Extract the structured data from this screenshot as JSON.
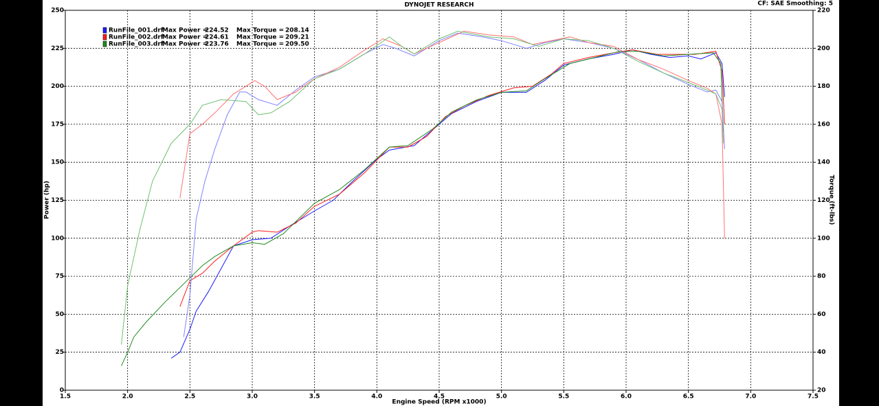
{
  "chart_data": {
    "type": "line",
    "title": "DYNOJET RESEARCH",
    "subtitle": "CF: SAE  Smoothing: 5",
    "x_label": "Engine Speed (RPM x1000)",
    "y_label": "Power (hp)",
    "y2_label": "Torque (ft-lbs)",
    "grid": true,
    "xlim": [
      1.5,
      7.5
    ],
    "xticks": [
      1.5,
      {
        "value": 2,
        "label": "2.0"
      },
      2.5,
      {
        "value": 3,
        "label": "3.0"
      },
      3.5,
      {
        "value": 4,
        "label": "4.0"
      },
      4.5,
      {
        "value": 5,
        "label": "5.0"
      },
      5.5,
      {
        "value": 6,
        "label": "6.0"
      },
      6.5,
      {
        "value": 7,
        "label": "7.0"
      },
      7.5
    ],
    "ylim": [
      0,
      250
    ],
    "yticks": [
      0,
      25,
      50,
      75,
      100,
      125,
      150,
      175,
      200,
      225,
      250
    ],
    "y2lim": [
      20,
      220
    ],
    "y2ticks": [
      20,
      40,
      60,
      80,
      100,
      120,
      140,
      160,
      180,
      200,
      220
    ],
    "series": [
      {
        "name": "RunFile_001.drf",
        "color": "#1a1aff",
        "max_label": "Max Power =",
        "max": 224.52,
        "x": [
          2.35,
          2.42,
          2.5,
          2.55,
          2.65,
          2.75,
          2.85,
          3.0,
          3.15,
          3.3,
          3.5,
          3.65,
          3.8,
          4.0,
          4.1,
          4.3,
          4.5,
          4.6,
          4.8,
          5.0,
          5.2,
          5.35,
          5.5,
          5.7,
          5.9,
          6.05,
          6.2,
          6.35,
          6.5,
          6.6,
          6.72,
          6.77,
          6.79
        ],
        "values": [
          21,
          25,
          40,
          52,
          65,
          80,
          95,
          99,
          100,
          108,
          118,
          125,
          137,
          152,
          158,
          161,
          175,
          182,
          190,
          196,
          196,
          204,
          214,
          218,
          221,
          224,
          221,
          219,
          220,
          218,
          222,
          215,
          193
        ]
      },
      {
        "name": "RunFile_002.drf",
        "color": "#ff1a1a",
        "max_label": "Max Power =",
        "max": 224.61,
        "x": [
          2.42,
          2.5,
          2.6,
          2.7,
          2.85,
          3.0,
          3.05,
          3.2,
          3.35,
          3.5,
          3.7,
          3.9,
          4.1,
          4.25,
          4.4,
          4.55,
          4.7,
          4.9,
          5.1,
          5.25,
          5.4,
          5.5,
          5.7,
          5.9,
          6.05,
          6.25,
          6.4,
          6.55,
          6.72,
          6.77,
          6.79
        ],
        "values": [
          55,
          72,
          77,
          85,
          95,
          104,
          105,
          104,
          110,
          121,
          129,
          143,
          160,
          160,
          167,
          180,
          187,
          194,
          199,
          200,
          208,
          215,
          219,
          222,
          224,
          221,
          221,
          221,
          223,
          210,
          175
        ]
      },
      {
        "name": "RunFile_003.drf",
        "color": "#1f8a1f",
        "max_label": "Max Power =",
        "max": 223.76,
        "x": [
          1.95,
          2.0,
          2.05,
          2.15,
          2.3,
          2.45,
          2.6,
          2.7,
          2.85,
          3.0,
          3.1,
          3.25,
          3.5,
          3.7,
          3.9,
          4.1,
          4.25,
          4.45,
          4.6,
          4.8,
          5.0,
          5.2,
          5.35,
          5.55,
          5.75,
          5.95,
          6.1,
          6.3,
          6.5,
          6.7,
          6.76,
          6.78
        ],
        "values": [
          16,
          25,
          35,
          45,
          58,
          70,
          82,
          88,
          95,
          97,
          96,
          103,
          123,
          132,
          145,
          160,
          161,
          172,
          183,
          191,
          196,
          197,
          205,
          215,
          219,
          223,
          223,
          220,
          221,
          222,
          215,
          170
        ]
      },
      {
        "color": "#8080ff",
        "axis": "y2",
        "max_label": "Max Torque =",
        "max": 208.14,
        "x": [
          2.45,
          2.5,
          2.55,
          2.62,
          2.7,
          2.8,
          2.9,
          2.95,
          3.05,
          3.2,
          3.35,
          3.5,
          3.7,
          3.9,
          4.05,
          4.15,
          4.3,
          4.5,
          4.65,
          4.85,
          5.0,
          5.2,
          5.35,
          5.5,
          5.7,
          5.9,
          6.1,
          6.3,
          6.5,
          6.65,
          6.72,
          6.77,
          6.79
        ],
        "values": [
          48,
          70,
          110,
          130,
          147,
          165,
          177,
          177,
          173,
          170,
          178,
          185,
          189,
          197,
          202,
          200,
          196,
          204,
          208,
          206,
          204,
          200,
          203,
          205,
          203,
          200,
          194,
          187,
          181,
          177,
          178,
          172,
          147
        ]
      },
      {
        "color": "#ff7070",
        "axis": "y2",
        "max_label": "Max Torque =",
        "max": 209.21,
        "x": [
          2.42,
          2.5,
          2.6,
          2.7,
          2.85,
          2.95,
          3.02,
          3.1,
          3.2,
          3.35,
          3.5,
          3.7,
          3.9,
          4.05,
          4.2,
          4.3,
          4.5,
          4.7,
          4.9,
          5.1,
          5.25,
          5.4,
          5.55,
          5.7,
          5.9,
          6.1,
          6.3,
          6.5,
          6.65,
          6.72,
          6.77,
          6.79
        ],
        "values": [
          121,
          155,
          160,
          166,
          176,
          180,
          183,
          180,
          173,
          177,
          184,
          190,
          199,
          205,
          201,
          197,
          203,
          209,
          207,
          206,
          202,
          204,
          206,
          203,
          201,
          194,
          189,
          183,
          179,
          176,
          160,
          100
        ]
      },
      {
        "color": "#6fbf6f",
        "axis": "y2",
        "max_label": "Max Torque =",
        "max": {
          "value": 209.5,
          "label": "209.50"
        },
        "x": [
          1.95,
          2.0,
          2.1,
          2.2,
          2.35,
          2.5,
          2.6,
          2.75,
          2.95,
          3.05,
          3.15,
          3.3,
          3.5,
          3.7,
          3.9,
          4.1,
          4.2,
          4.3,
          4.5,
          4.65,
          4.9,
          5.1,
          5.3,
          5.5,
          5.7,
          5.9,
          6.1,
          6.3,
          6.5,
          6.65,
          6.72,
          6.77,
          6.78
        ],
        "values": [
          44,
          75,
          105,
          130,
          150,
          160,
          170,
          173,
          172,
          165,
          166,
          172,
          184,
          189,
          197,
          206,
          201,
          197,
          205,
          209,
          206,
          205,
          201,
          205,
          204,
          200,
          193,
          187,
          182,
          178,
          176,
          168,
          150
        ]
      }
    ]
  }
}
